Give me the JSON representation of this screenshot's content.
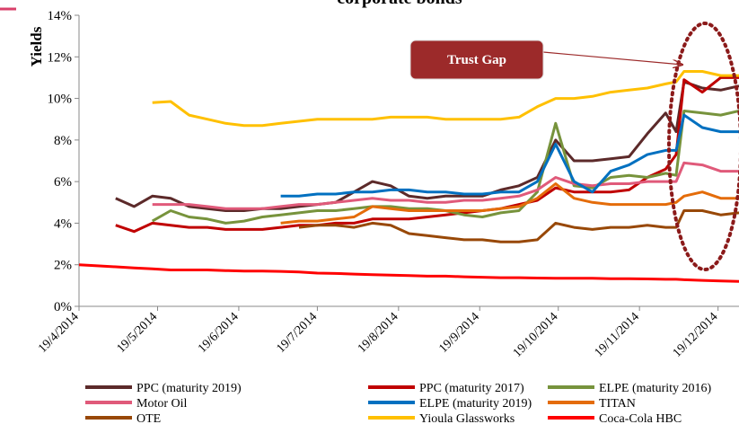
{
  "chart_data": {
    "type": "line",
    "title": "corporate bonds",
    "y_label": "Yields",
    "annotation": "Trust Gap",
    "x": [
      0,
      7,
      14,
      21,
      28,
      35,
      42,
      49,
      56,
      63,
      70,
      77,
      84,
      91,
      98,
      105,
      112,
      119,
      126,
      133,
      140,
      147,
      154,
      161,
      168,
      175,
      182,
      189,
      196,
      203,
      210,
      217,
      224,
      228,
      231,
      238,
      245,
      252
    ],
    "xlim": [
      0,
      252
    ],
    "xticks": [
      {
        "value": 0,
        "label": "19/4/2014"
      },
      {
        "value": 30,
        "label": "19/5/2014"
      },
      {
        "value": 61,
        "label": "19/6/2014"
      },
      {
        "value": 91,
        "label": "19/7/2014"
      },
      {
        "value": 122,
        "label": "19/8/2014"
      },
      {
        "value": 153,
        "label": "19/9/2014"
      },
      {
        "value": 183,
        "label": "19/10/2014"
      },
      {
        "value": 214,
        "label": "19/11/2014"
      },
      {
        "value": 244,
        "label": "19/12/2014"
      }
    ],
    "ylim": [
      0,
      14
    ],
    "yticks": [
      {
        "value": 0,
        "label": "0%"
      },
      {
        "value": 2,
        "label": "2%"
      },
      {
        "value": 4,
        "label": "4%"
      },
      {
        "value": 6,
        "label": "6%"
      },
      {
        "value": 8,
        "label": "8%"
      },
      {
        "value": 10,
        "label": "10%"
      },
      {
        "value": 12,
        "label": "12%"
      },
      {
        "value": 14,
        "label": "14%"
      }
    ],
    "grid": false,
    "legend": "bottom",
    "series": [
      {
        "name": "PPC (maturity 2019)",
        "color": "#5c2a2a",
        "values": [
          null,
          null,
          5.2,
          4.8,
          5.3,
          5.2,
          4.8,
          4.7,
          4.6,
          4.6,
          4.7,
          4.7,
          4.8,
          4.9,
          5.0,
          5.5,
          6.0,
          5.8,
          5.3,
          5.2,
          5.3,
          5.3,
          5.3,
          5.6,
          5.8,
          6.2,
          8.0,
          7.0,
          7.0,
          7.1,
          7.2,
          8.3,
          9.3,
          8.4,
          10.8,
          10.5,
          10.4,
          10.6
        ]
      },
      {
        "name": "PPC (maturity 2017)",
        "color": "#c00000",
        "values": [
          null,
          null,
          3.9,
          3.6,
          4.0,
          3.9,
          3.8,
          3.8,
          3.7,
          3.7,
          3.7,
          3.8,
          3.9,
          3.9,
          4.0,
          4.0,
          4.2,
          4.2,
          4.2,
          4.3,
          4.4,
          4.5,
          4.6,
          4.7,
          4.9,
          5.1,
          5.7,
          5.5,
          5.5,
          5.5,
          5.6,
          6.2,
          6.6,
          7.3,
          10.9,
          10.3,
          11.0,
          11.0
        ]
      },
      {
        "name": "ELPE (maturity 2016)",
        "color": "#77933c",
        "values": [
          null,
          null,
          null,
          null,
          4.1,
          4.6,
          4.3,
          4.2,
          4.0,
          4.1,
          4.3,
          4.4,
          4.5,
          4.6,
          4.6,
          4.7,
          4.8,
          4.8,
          4.7,
          4.7,
          4.6,
          4.4,
          4.3,
          4.5,
          4.6,
          5.5,
          8.8,
          5.8,
          5.7,
          6.2,
          6.3,
          6.2,
          6.4,
          6.3,
          9.4,
          9.3,
          9.2,
          9.4
        ]
      },
      {
        "name": "Motor Oil",
        "color": "#e05a7a",
        "values": [
          null,
          null,
          null,
          null,
          4.9,
          4.9,
          4.9,
          4.8,
          4.7,
          4.7,
          4.7,
          4.8,
          4.9,
          4.9,
          5.0,
          5.1,
          5.2,
          5.1,
          5.1,
          5.0,
          5.0,
          5.1,
          5.1,
          5.2,
          5.3,
          5.6,
          6.2,
          5.9,
          5.8,
          5.9,
          5.9,
          6.0,
          6.0,
          6.0,
          6.9,
          6.8,
          6.5,
          6.5
        ]
      },
      {
        "name": "ELPE (maturity 2019)",
        "color": "#0070c0",
        "values": [
          null,
          null,
          null,
          null,
          null,
          null,
          null,
          null,
          null,
          null,
          null,
          5.3,
          5.3,
          5.4,
          5.4,
          5.5,
          5.5,
          5.6,
          5.6,
          5.5,
          5.5,
          5.4,
          5.4,
          5.5,
          5.5,
          6.0,
          7.8,
          6.0,
          5.5,
          6.5,
          6.8,
          7.3,
          7.5,
          7.5,
          9.2,
          8.6,
          8.4,
          8.4
        ]
      },
      {
        "name": "TITAN",
        "color": "#e46c0a",
        "values": [
          null,
          null,
          null,
          null,
          null,
          null,
          null,
          null,
          null,
          null,
          null,
          4.0,
          4.1,
          4.1,
          4.2,
          4.3,
          4.8,
          4.7,
          4.6,
          4.6,
          4.6,
          4.6,
          4.6,
          4.7,
          4.8,
          5.2,
          5.9,
          5.2,
          5.0,
          4.9,
          4.9,
          4.9,
          4.9,
          5.0,
          5.3,
          5.5,
          5.2,
          5.2
        ]
      },
      {
        "name": "OTE",
        "color": "#984807",
        "values": [
          null,
          null,
          null,
          null,
          null,
          null,
          null,
          null,
          null,
          null,
          null,
          null,
          3.8,
          3.9,
          3.9,
          3.8,
          4.0,
          3.9,
          3.5,
          3.4,
          3.3,
          3.2,
          3.2,
          3.1,
          3.1,
          3.2,
          4.0,
          3.8,
          3.7,
          3.8,
          3.8,
          3.9,
          3.8,
          3.8,
          4.6,
          4.6,
          4.4,
          4.5
        ]
      },
      {
        "name": "Yioula Glassworks",
        "color": "#ffc000",
        "values": [
          null,
          null,
          null,
          null,
          9.8,
          9.85,
          9.2,
          9.0,
          8.8,
          8.7,
          8.7,
          8.8,
          8.9,
          9.0,
          9.0,
          9.0,
          9.0,
          9.1,
          9.1,
          9.1,
          9.0,
          9.0,
          9.0,
          9.0,
          9.1,
          9.6,
          10.0,
          10.0,
          10.1,
          10.3,
          10.4,
          10.5,
          10.7,
          10.8,
          11.3,
          11.3,
          11.1,
          11.1
        ]
      },
      {
        "name": "Coca-Cola HBC",
        "color": "#ff0000",
        "values": [
          2.0,
          1.95,
          1.9,
          1.85,
          1.8,
          1.75,
          1.75,
          1.75,
          1.72,
          1.7,
          1.7,
          1.68,
          1.65,
          1.6,
          1.58,
          1.55,
          1.52,
          1.5,
          1.48,
          1.45,
          1.45,
          1.42,
          1.4,
          1.38,
          1.38,
          1.36,
          1.35,
          1.35,
          1.35,
          1.33,
          1.33,
          1.32,
          1.3,
          1.3,
          1.28,
          1.25,
          1.22,
          1.2
        ]
      }
    ]
  }
}
